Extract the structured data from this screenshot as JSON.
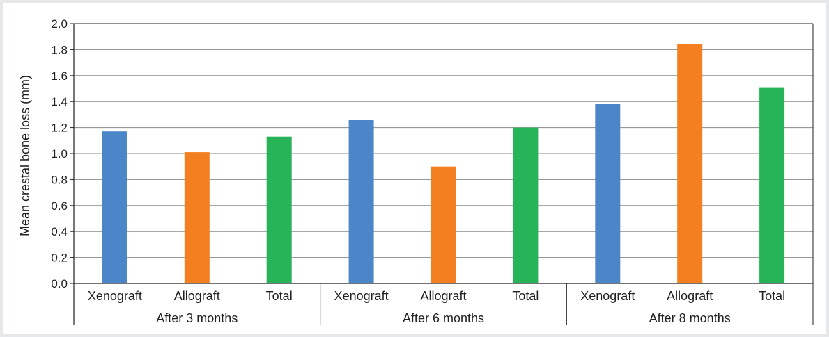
{
  "chart_data": {
    "type": "bar",
    "title": "",
    "xlabel": "",
    "ylabel": "Mean crestal bone loss (mm)",
    "ylim": [
      0,
      2.0
    ],
    "yticks": [
      "0.0",
      "0.2",
      "0.4",
      "0.6",
      "0.8",
      "1.0",
      "1.2",
      "1.4",
      "1.6",
      "1.8",
      "2.0"
    ],
    "grid": true,
    "legend": "none",
    "groups": [
      {
        "label": "After 3 months",
        "bars": [
          {
            "category": "Xenograft",
            "value": 1.17,
            "color": "#4a86c8"
          },
          {
            "category": "Allograft",
            "value": 1.01,
            "color": "#f47f20"
          },
          {
            "category": "Total",
            "value": 1.13,
            "color": "#27b458"
          }
        ]
      },
      {
        "label": "After 6 months",
        "bars": [
          {
            "category": "Xenograft",
            "value": 1.26,
            "color": "#4a86c8"
          },
          {
            "category": "Allograft",
            "value": 0.9,
            "color": "#f47f20"
          },
          {
            "category": "Total",
            "value": 1.2,
            "color": "#27b458"
          }
        ]
      },
      {
        "label": "After 8 months",
        "bars": [
          {
            "category": "Xenograft",
            "value": 1.38,
            "color": "#4a86c8"
          },
          {
            "category": "Allograft",
            "value": 1.84,
            "color": "#f47f20"
          },
          {
            "category": "Total",
            "value": 1.51,
            "color": "#27b458"
          }
        ]
      }
    ]
  }
}
